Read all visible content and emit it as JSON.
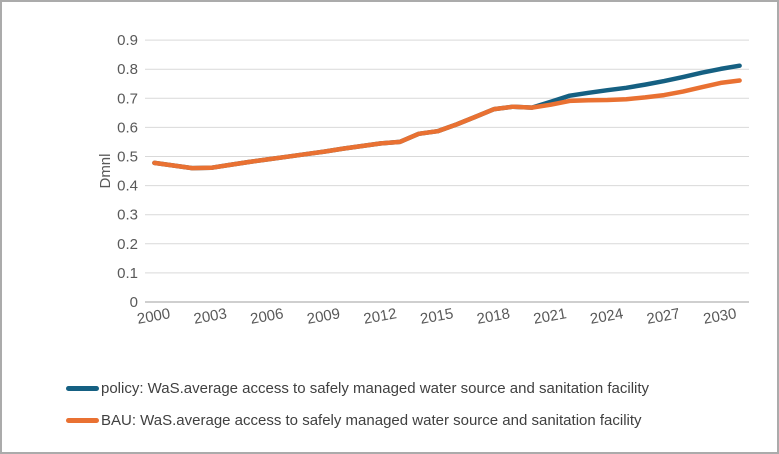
{
  "window": {
    "background": "#ffffff",
    "border_color": "#ababab"
  },
  "chart_data": {
    "type": "line",
    "title": "",
    "xlabel": "",
    "ylabel": "Dmnl",
    "ylim": [
      0,
      0.9
    ],
    "grid": "horizontal",
    "legend_position": "bottom-left",
    "x": [
      2000,
      2001,
      2002,
      2003,
      2004,
      2005,
      2006,
      2007,
      2008,
      2009,
      2010,
      2011,
      2012,
      2013,
      2014,
      2015,
      2016,
      2017,
      2018,
      2019,
      2020,
      2021,
      2022,
      2023,
      2024,
      2025,
      2026,
      2027,
      2028,
      2029,
      2030,
      2031
    ],
    "x_tick_labels": [
      "2000",
      "2003",
      "2006",
      "2009",
      "2012",
      "2015",
      "2018",
      "2021",
      "2024",
      "2027",
      "2030"
    ],
    "y_ticks": [
      {
        "v": 0.9,
        "label": "0.9"
      },
      {
        "v": 0.8,
        "label": "0.8"
      },
      {
        "v": 0.7,
        "label": "0.7"
      },
      {
        "v": 0.6,
        "label": "0.6"
      },
      {
        "v": 0.5,
        "label": "0.5"
      },
      {
        "v": 0.4,
        "label": "0.4"
      },
      {
        "v": 0.3,
        "label": "0.3"
      },
      {
        "v": 0.2,
        "label": "0.2"
      },
      {
        "v": 0.1,
        "label": "0.1"
      },
      {
        "v": 0.0,
        "label": "0"
      }
    ],
    "colors": {
      "gridline": "#d9d9d9",
      "axis_line": "#bfbfbf",
      "tick_text": "#595959",
      "legend_text": "#404040"
    },
    "series": [
      {
        "name": "policy: WaS.average access to safely managed water source and sanitation facility",
        "color": "#156082",
        "values": [
          0.478,
          0.469,
          0.46,
          0.461,
          0.471,
          0.481,
          0.49,
          0.499,
          0.508,
          0.517,
          0.527,
          0.536,
          0.545,
          0.55,
          0.578,
          0.587,
          0.61,
          0.636,
          0.663,
          0.671,
          0.668,
          0.688,
          0.709,
          0.719,
          0.728,
          0.736,
          0.747,
          0.759,
          0.773,
          0.788,
          0.801,
          0.812
        ]
      },
      {
        "name": "BAU: WaS.average access to safely managed water source and sanitation facility",
        "color": "#e97132",
        "values": [
          0.478,
          0.469,
          0.46,
          0.461,
          0.471,
          0.481,
          0.49,
          0.499,
          0.508,
          0.517,
          0.527,
          0.536,
          0.545,
          0.55,
          0.578,
          0.587,
          0.61,
          0.636,
          0.663,
          0.671,
          0.668,
          0.678,
          0.691,
          0.693,
          0.694,
          0.697,
          0.703,
          0.711,
          0.723,
          0.738,
          0.753,
          0.761
        ]
      }
    ]
  }
}
